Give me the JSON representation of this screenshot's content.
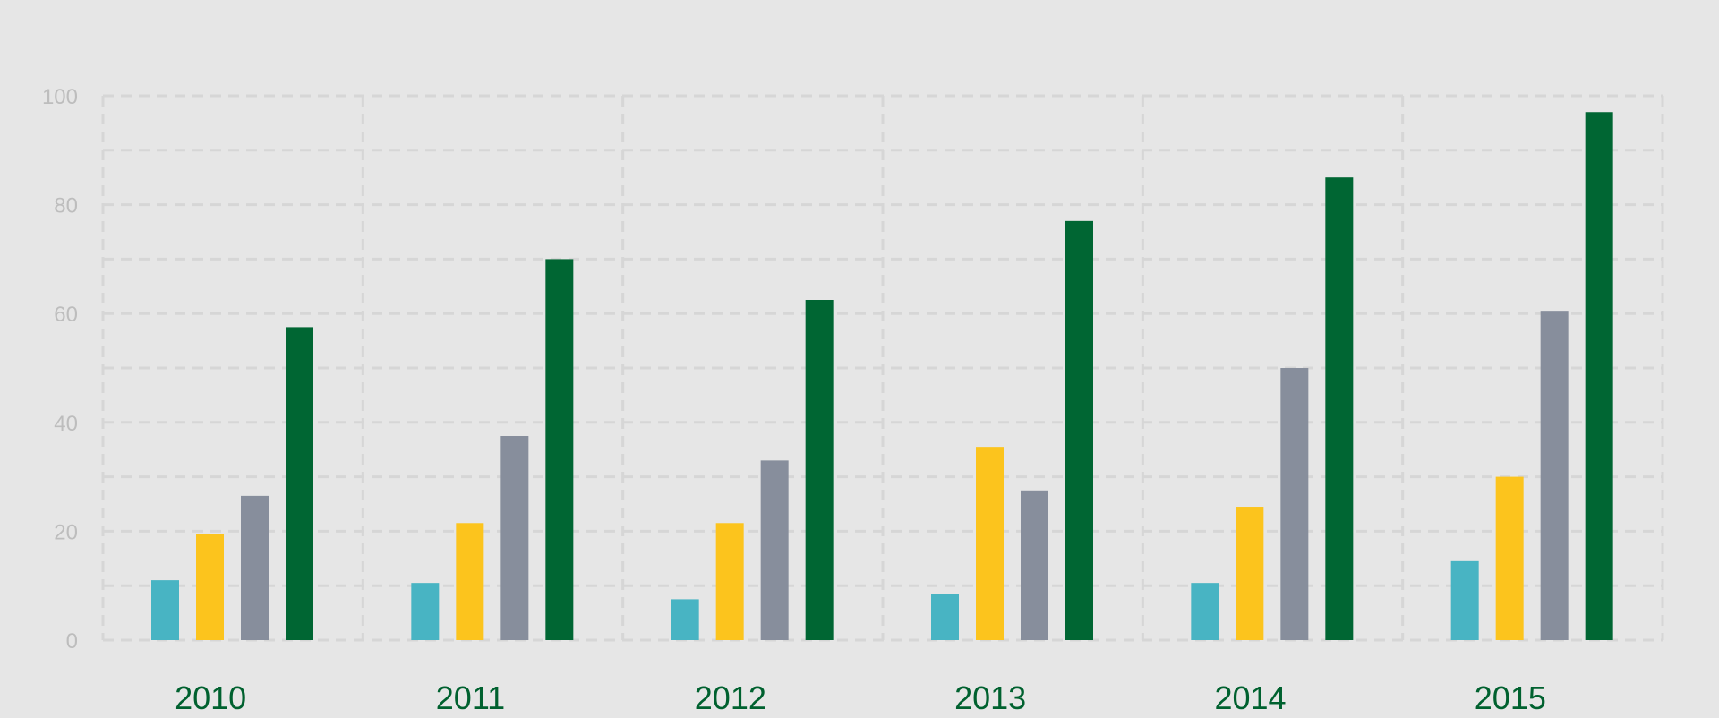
{
  "chart_data": {
    "type": "bar",
    "title": "",
    "xlabel": "",
    "ylabel": "",
    "categories": [
      "2010",
      "2011",
      "2012",
      "2013",
      "2014",
      "2015"
    ],
    "series": [
      {
        "values": [
          11,
          10.5,
          7.5,
          8.5,
          10.5,
          14.5
        ],
        "color": "#48b4c3"
      },
      {
        "values": [
          19.5,
          21.5,
          21.5,
          35.5,
          24.5,
          30
        ],
        "color": "#fcc41d"
      },
      {
        "values": [
          26.5,
          37.5,
          33,
          27.5,
          50,
          60.5
        ],
        "color": "#878e9c"
      },
      {
        "values": [
          57.5,
          70,
          62.5,
          77,
          85,
          97
        ],
        "color": "#006633"
      }
    ],
    "ylim": [
      0,
      100
    ],
    "yticks": [
      0,
      20,
      40,
      60,
      80,
      100
    ],
    "grid": true,
    "legend": "none"
  },
  "colors": {
    "background": "#e6e6e6",
    "grid": "#d6d6d6",
    "ytick_text": "#bdbdbd",
    "xtick_text": "#00612f"
  }
}
